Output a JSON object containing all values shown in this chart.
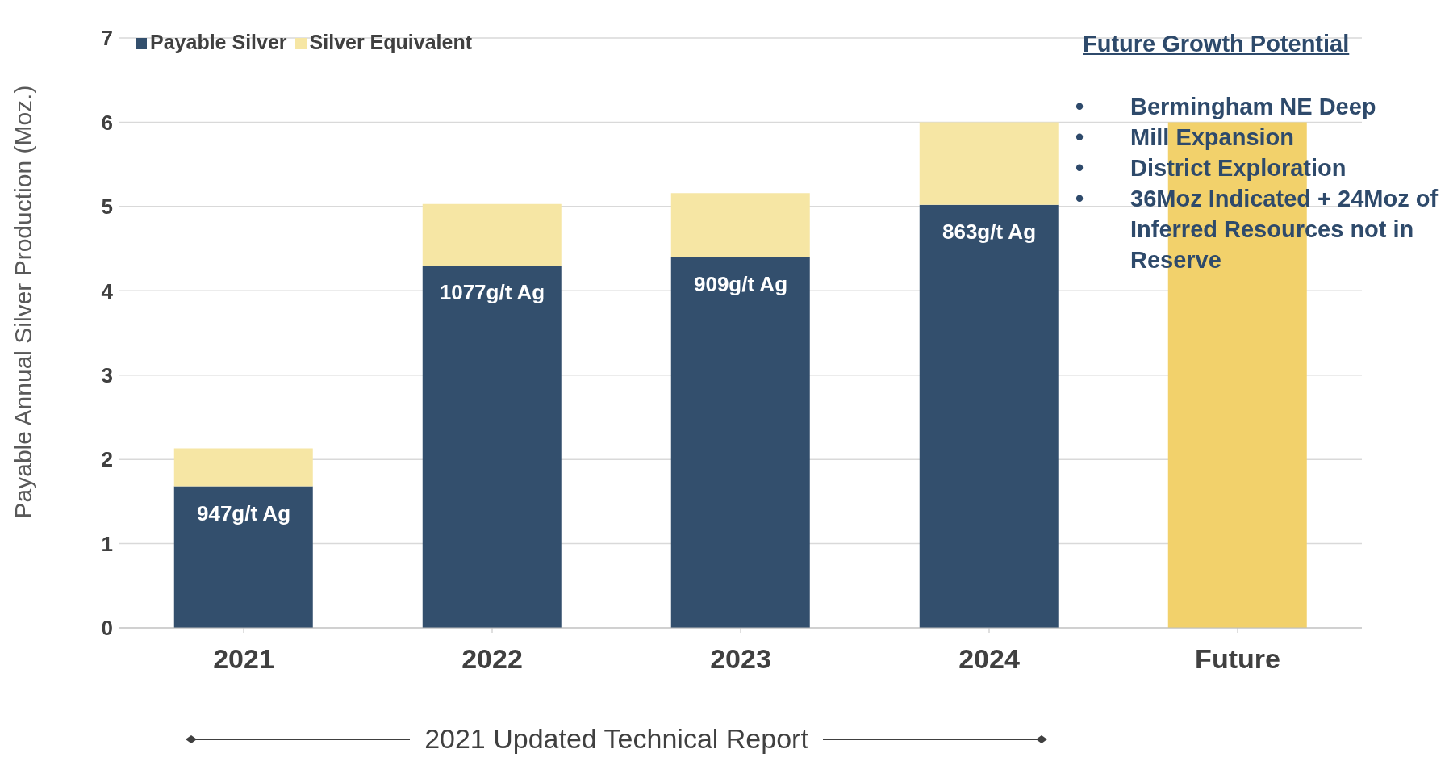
{
  "chart_data": {
    "type": "bar",
    "stacked": true,
    "ylabel": "Payable Annual Silver Production (Moz.)",
    "categories": [
      "2021",
      "2022",
      "2023",
      "2024",
      "Future"
    ],
    "series": [
      {
        "name": "Payable Silver",
        "color": "#334f6d",
        "values": [
          1.68,
          4.3,
          4.4,
          5.02,
          null
        ]
      },
      {
        "name": "Silver Equivalent",
        "color": "#f6e6a4",
        "colors": [
          "#f6e6a4",
          "#f6e6a4",
          "#f6e6a4",
          "#f6e6a4",
          "#f2d16b"
        ],
        "values": [
          0.45,
          0.73,
          0.76,
          0.98,
          6.0
        ]
      }
    ],
    "ylim": [
      0,
      7
    ],
    "yticks": [
      0,
      1,
      2,
      3,
      4,
      5,
      6,
      7
    ],
    "grid": "y",
    "legend": "top left",
    "annotations": [
      "Future Growth Potential",
      "• Bermingham NE Deep",
      "• Mill Expansion",
      "• District Exploration",
      "• 36Moz Indicated + 24Moz of Inferred Resources not in Reserve",
      "2021 Updated Technical Report",
      "947g/t Ag",
      "1077g/t Ag",
      "909g/t Ag",
      "863g/t Ag"
    ]
  }
}
